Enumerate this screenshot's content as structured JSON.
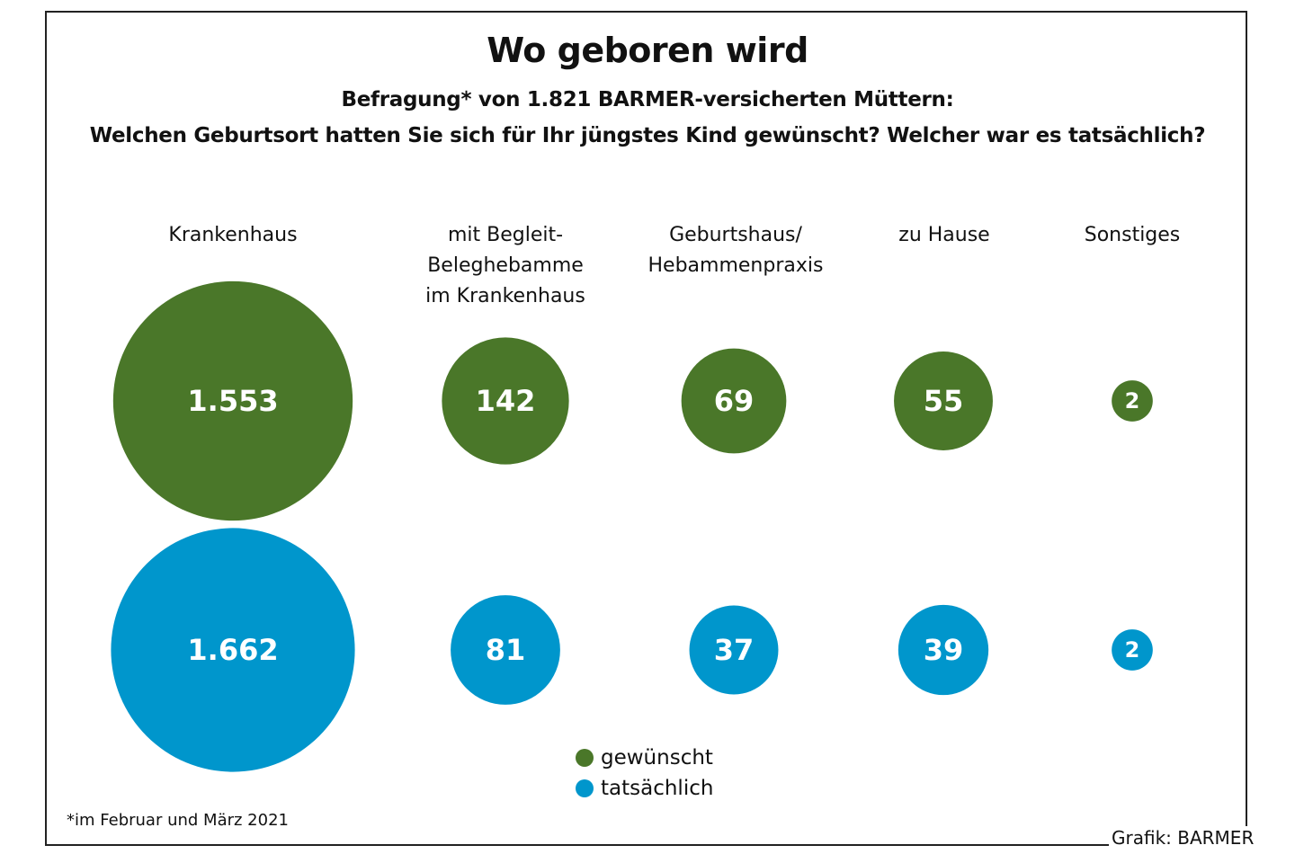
{
  "chart_data": {
    "type": "bubble",
    "title": "Wo geboren wird",
    "subtitle_lines": [
      "Befragung* von 1.821 BARMER-versicherten Müttern:",
      "Welchen Geburtsort hatten Sie sich für Ihr jüngstes Kind gewünscht? Welcher war es tatsächlich?"
    ],
    "categories": [
      "Krankenhaus",
      "mit Begleit-\nBeleghebamme\nim Krankenhaus",
      "Geburtshaus/\nHebammenpraxis",
      "zu Hause",
      "Sonstiges"
    ],
    "series": [
      {
        "name": "gewünscht",
        "color": "#4a7729",
        "values": [
          1553,
          142,
          69,
          55,
          2
        ],
        "labels": [
          "1.553",
          "142",
          "69",
          "55",
          "2"
        ]
      },
      {
        "name": "tatsächlich",
        "color": "#0096cc",
        "values": [
          1662,
          81,
          37,
          39,
          2
        ],
        "labels": [
          "1.662",
          "81",
          "37",
          "39",
          "2"
        ]
      }
    ],
    "legend": {
      "position": "bottom-center",
      "entries": [
        "gewünscht",
        "tatsächlich"
      ]
    },
    "footnote": "*im Februar und März 2021",
    "credit": "Grafik: BARMER",
    "total_respondents": 1821
  }
}
